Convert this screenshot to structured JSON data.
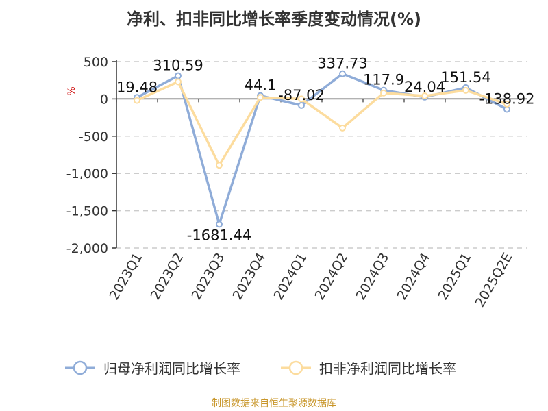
{
  "title": "净利、扣非同比增长率季度变动情况(%)",
  "source": "制图数据来自恒生聚源数据库",
  "chart_data": {
    "type": "line",
    "title": "净利、扣非同比增长率季度变动情况(%)",
    "ylabel": "%",
    "xlabel": "",
    "categories": [
      "2023Q1",
      "2023Q2",
      "2023Q3",
      "2023Q4",
      "2024Q1",
      "2024Q2",
      "2024Q3",
      "2024Q4",
      "2025Q1",
      "2025Q2E"
    ],
    "ylim": [
      -2000,
      500
    ],
    "yticks": [
      500,
      0,
      -500,
      -1000,
      -1500,
      -2000
    ],
    "ytick_labels": [
      "500",
      "0",
      "-500",
      "-1,000",
      "-1,500",
      "-2,000"
    ],
    "grid": true,
    "legend_position": "bottom",
    "series": [
      {
        "name": "归母净利润同比增长率",
        "color": "#8facd8",
        "values": [
          19.48,
          310.59,
          -1681.44,
          44.1,
          -87.02,
          337.73,
          117.9,
          24.04,
          151.54,
          -138.92
        ],
        "labels": [
          "19.48",
          "310.59",
          "-1681.44",
          "44.1",
          "-87.02",
          "337.73",
          "117.9",
          "24.04",
          "151.54",
          "-138.92"
        ]
      },
      {
        "name": "扣非净利润同比增长率",
        "color": "#fcdc9e",
        "values": [
          -20,
          230,
          -890,
          20,
          0,
          -390,
          80,
          40,
          115,
          -70
        ]
      }
    ]
  }
}
